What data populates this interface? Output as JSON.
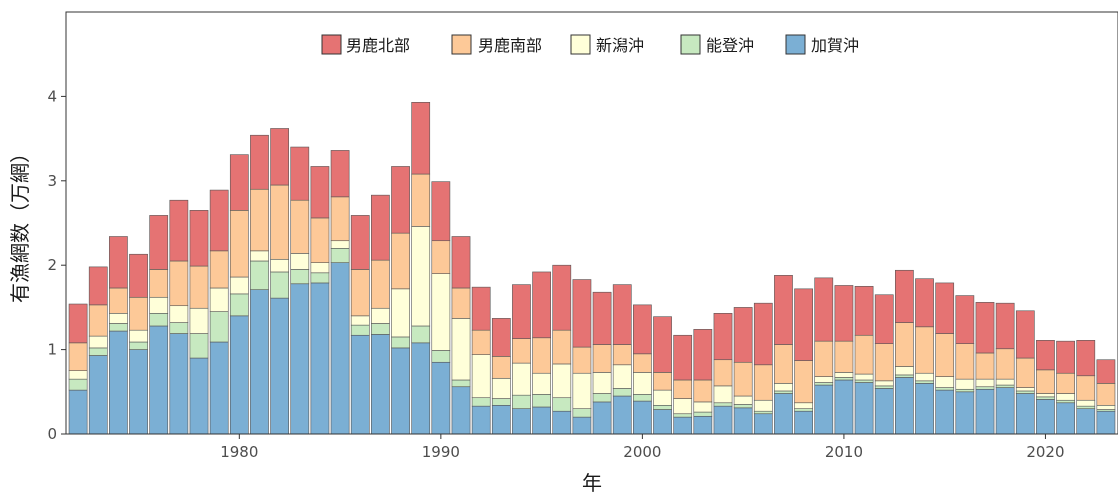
{
  "chart_data": {
    "type": "bar",
    "stacked": true,
    "xlabel": "年",
    "ylabel": "有漁網数（万網）",
    "ylim": [
      0,
      5
    ],
    "yticks": [
      0,
      1,
      2,
      3,
      4
    ],
    "xticks": [
      1980,
      1990,
      2000,
      2010,
      2020
    ],
    "legend_position": "top",
    "x": [
      1972,
      1973,
      1974,
      1975,
      1976,
      1977,
      1978,
      1979,
      1980,
      1981,
      1982,
      1983,
      1984,
      1985,
      1986,
      1987,
      1988,
      1989,
      1990,
      1991,
      1992,
      1993,
      1994,
      1995,
      1996,
      1997,
      1998,
      1999,
      2000,
      2001,
      2002,
      2003,
      2004,
      2005,
      2006,
      2007,
      2008,
      2009,
      2010,
      2011,
      2012,
      2013,
      2014,
      2015,
      2016,
      2017,
      2018,
      2019,
      2020,
      2021,
      2022,
      2023
    ],
    "series": [
      {
        "name": "加賀沖",
        "color": "#7bafd4",
        "values": [
          0.52,
          0.93,
          1.22,
          1.0,
          1.28,
          1.19,
          0.9,
          1.09,
          1.4,
          1.71,
          1.61,
          1.78,
          1.79,
          2.03,
          1.17,
          1.18,
          1.02,
          1.08,
          0.85,
          0.56,
          0.33,
          0.34,
          0.3,
          0.32,
          0.27,
          0.2,
          0.38,
          0.45,
          0.39,
          0.29,
          0.2,
          0.21,
          0.33,
          0.31,
          0.24,
          0.48,
          0.27,
          0.58,
          0.64,
          0.61,
          0.54,
          0.67,
          0.6,
          0.52,
          0.5,
          0.53,
          0.55,
          0.48,
          0.41,
          0.37,
          0.3,
          0.27
        ]
      },
      {
        "name": "能登沖",
        "color": "#c7e9c0",
        "values": [
          0.13,
          0.09,
          0.09,
          0.09,
          0.15,
          0.13,
          0.29,
          0.36,
          0.26,
          0.34,
          0.31,
          0.17,
          0.12,
          0.17,
          0.12,
          0.13,
          0.13,
          0.2,
          0.14,
          0.08,
          0.1,
          0.08,
          0.16,
          0.15,
          0.16,
          0.1,
          0.1,
          0.09,
          0.08,
          0.05,
          0.04,
          0.05,
          0.04,
          0.04,
          0.03,
          0.03,
          0.03,
          0.03,
          0.03,
          0.03,
          0.03,
          0.03,
          0.03,
          0.03,
          0.03,
          0.03,
          0.03,
          0.03,
          0.03,
          0.03,
          0.03,
          0.02
        ]
      },
      {
        "name": "新潟沖",
        "color": "#ffffd9",
        "values": [
          0.1,
          0.14,
          0.12,
          0.14,
          0.19,
          0.2,
          0.3,
          0.28,
          0.2,
          0.12,
          0.15,
          0.19,
          0.12,
          0.09,
          0.11,
          0.18,
          0.57,
          1.18,
          0.91,
          0.73,
          0.51,
          0.24,
          0.38,
          0.25,
          0.4,
          0.42,
          0.25,
          0.28,
          0.26,
          0.18,
          0.18,
          0.12,
          0.2,
          0.1,
          0.13,
          0.09,
          0.07,
          0.07,
          0.06,
          0.07,
          0.06,
          0.1,
          0.09,
          0.13,
          0.12,
          0.09,
          0.07,
          0.04,
          0.04,
          0.08,
          0.07,
          0.05
        ]
      },
      {
        "name": "男鹿南部",
        "color": "#fdc998",
        "values": [
          0.33,
          0.37,
          0.3,
          0.39,
          0.33,
          0.53,
          0.5,
          0.44,
          0.79,
          0.73,
          0.88,
          0.63,
          0.53,
          0.52,
          0.55,
          0.57,
          0.66,
          0.62,
          0.39,
          0.36,
          0.29,
          0.26,
          0.29,
          0.42,
          0.4,
          0.31,
          0.33,
          0.24,
          0.22,
          0.21,
          0.22,
          0.26,
          0.31,
          0.4,
          0.42,
          0.46,
          0.5,
          0.42,
          0.37,
          0.46,
          0.44,
          0.52,
          0.55,
          0.51,
          0.42,
          0.31,
          0.36,
          0.35,
          0.28,
          0.24,
          0.29,
          0.26
        ]
      },
      {
        "name": "男鹿北部",
        "color": "#e57373",
        "values": [
          0.46,
          0.45,
          0.61,
          0.51,
          0.64,
          0.72,
          0.66,
          0.72,
          0.66,
          0.64,
          0.67,
          0.63,
          0.61,
          0.55,
          0.64,
          0.77,
          0.79,
          0.85,
          0.7,
          0.61,
          0.51,
          0.45,
          0.64,
          0.78,
          0.77,
          0.8,
          0.62,
          0.71,
          0.58,
          0.66,
          0.53,
          0.6,
          0.55,
          0.65,
          0.73,
          0.82,
          0.85,
          0.75,
          0.66,
          0.58,
          0.58,
          0.62,
          0.57,
          0.6,
          0.57,
          0.6,
          0.54,
          0.56,
          0.35,
          0.38,
          0.42,
          0.28
        ]
      }
    ],
    "legend_order": [
      "男鹿北部",
      "男鹿南部",
      "新潟沖",
      "能登沖",
      "加賀沖"
    ]
  }
}
